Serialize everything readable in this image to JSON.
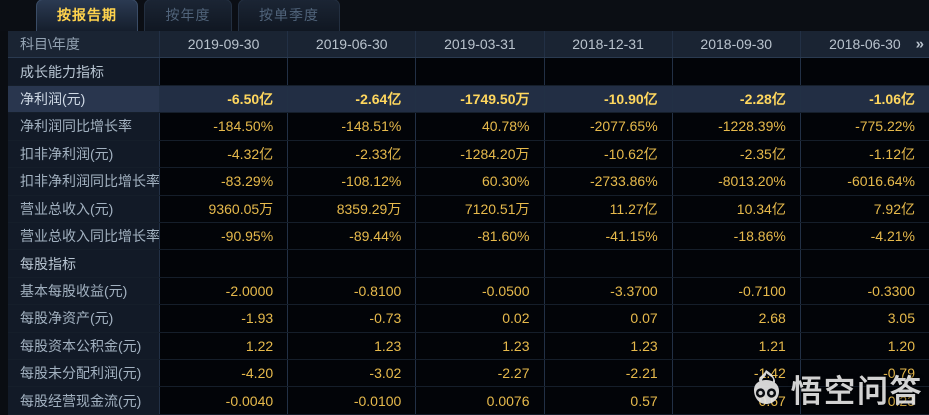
{
  "tabs": [
    {
      "label": "按报告期",
      "active": true
    },
    {
      "label": "按年度",
      "active": false
    },
    {
      "label": "按单季度",
      "active": false
    }
  ],
  "table": {
    "corner_label": "科目\\年度",
    "next_icon": "»",
    "columns": [
      "2019-09-30",
      "2019-06-30",
      "2019-03-31",
      "2018-12-31",
      "2018-09-30",
      "2018-06-30"
    ],
    "rows": [
      {
        "type": "section",
        "label": "成长能力指标",
        "values": [
          "",
          "",
          "",
          "",
          "",
          ""
        ]
      },
      {
        "type": "data",
        "highlighted": true,
        "label": "净利润(元)",
        "values": [
          "-6.50亿",
          "-2.64亿",
          "-1749.50万",
          "-10.90亿",
          "-2.28亿",
          "-1.06亿"
        ]
      },
      {
        "type": "data",
        "label": "净利润同比增长率",
        "values": [
          "-184.50%",
          "-148.51%",
          "40.78%",
          "-2077.65%",
          "-1228.39%",
          "-775.22%"
        ]
      },
      {
        "type": "data",
        "label": "扣非净利润(元)",
        "values": [
          "-4.32亿",
          "-2.33亿",
          "-1284.20万",
          "-10.62亿",
          "-2.35亿",
          "-1.12亿"
        ]
      },
      {
        "type": "data",
        "label": "扣非净利润同比增长率",
        "values": [
          "-83.29%",
          "-108.12%",
          "60.30%",
          "-2733.86%",
          "-8013.20%",
          "-6016.64%"
        ]
      },
      {
        "type": "data",
        "label": "营业总收入(元)",
        "values": [
          "9360.05万",
          "8359.29万",
          "7120.51万",
          "11.27亿",
          "10.34亿",
          "7.92亿"
        ]
      },
      {
        "type": "data",
        "label": "营业总收入同比增长率",
        "values": [
          "-90.95%",
          "-89.44%",
          "-81.60%",
          "-41.15%",
          "-18.86%",
          "-4.21%"
        ]
      },
      {
        "type": "section",
        "label": "每股指标",
        "values": [
          "",
          "",
          "",
          "",
          "",
          ""
        ]
      },
      {
        "type": "data",
        "label": "基本每股收益(元)",
        "values": [
          "-2.0000",
          "-0.8100",
          "-0.0500",
          "-3.3700",
          "-0.7100",
          "-0.3300"
        ]
      },
      {
        "type": "data",
        "label": "每股净资产(元)",
        "values": [
          "-1.93",
          "-0.73",
          "0.02",
          "0.07",
          "2.68",
          "3.05"
        ]
      },
      {
        "type": "data",
        "label": "每股资本公积金(元)",
        "values": [
          "1.22",
          "1.23",
          "1.23",
          "1.23",
          "1.21",
          "1.20"
        ]
      },
      {
        "type": "data",
        "label": "每股未分配利润(元)",
        "values": [
          "-4.20",
          "-3.02",
          "-2.27",
          "-2.21",
          "-1.42",
          "-0.79"
        ]
      },
      {
        "type": "data",
        "label": "每股经营现金流(元)",
        "values": [
          "-0.0040",
          "-0.0100",
          "0.0076",
          "0.57",
          "0.67",
          "0.23"
        ]
      }
    ]
  },
  "watermark": {
    "text": "悟空问答"
  },
  "colors": {
    "value_gold": "#e7ba4c",
    "active_tab_text": "#ffd34d",
    "header_bg": "#1a2433",
    "label_bg": "#121a27",
    "value_bg": "#020408",
    "highlight_bg": "#29364e"
  }
}
